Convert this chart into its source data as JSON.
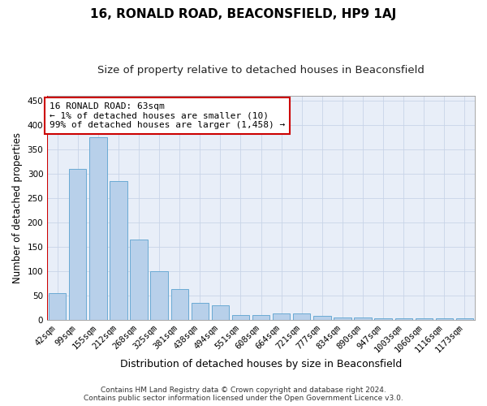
{
  "title": "16, RONALD ROAD, BEACONSFIELD, HP9 1AJ",
  "subtitle": "Size of property relative to detached houses in Beaconsfield",
  "xlabel": "Distribution of detached houses by size in Beaconsfield",
  "ylabel": "Number of detached properties",
  "categories": [
    "42sqm",
    "99sqm",
    "155sqm",
    "212sqm",
    "268sqm",
    "325sqm",
    "381sqm",
    "438sqm",
    "494sqm",
    "551sqm",
    "608sqm",
    "664sqm",
    "721sqm",
    "777sqm",
    "834sqm",
    "890sqm",
    "947sqm",
    "1003sqm",
    "1060sqm",
    "1116sqm",
    "1173sqm"
  ],
  "values": [
    55,
    310,
    375,
    285,
    165,
    100,
    63,
    35,
    30,
    10,
    10,
    13,
    13,
    7,
    5,
    5,
    3,
    3,
    3,
    3,
    2
  ],
  "bar_color": "#b8d0ea",
  "bar_edgecolor": "#6aaad4",
  "annotation_text": "16 RONALD ROAD: 63sqm\n← 1% of detached houses are smaller (10)\n99% of detached houses are larger (1,458) →",
  "annotation_box_color": "#ffffff",
  "annotation_box_edgecolor": "#cc0000",
  "ylim": [
    0,
    460
  ],
  "yticks": [
    0,
    50,
    100,
    150,
    200,
    250,
    300,
    350,
    400,
    450
  ],
  "grid_color": "#c8d4e8",
  "background_color": "#e8eef8",
  "footer1": "Contains HM Land Registry data © Crown copyright and database right 2024.",
  "footer2": "Contains public sector information licensed under the Open Government Licence v3.0.",
  "title_fontsize": 11,
  "subtitle_fontsize": 9.5,
  "xlabel_fontsize": 9,
  "ylabel_fontsize": 8.5,
  "tick_fontsize": 7.5,
  "annotation_fontsize": 8,
  "footer_fontsize": 6.5
}
